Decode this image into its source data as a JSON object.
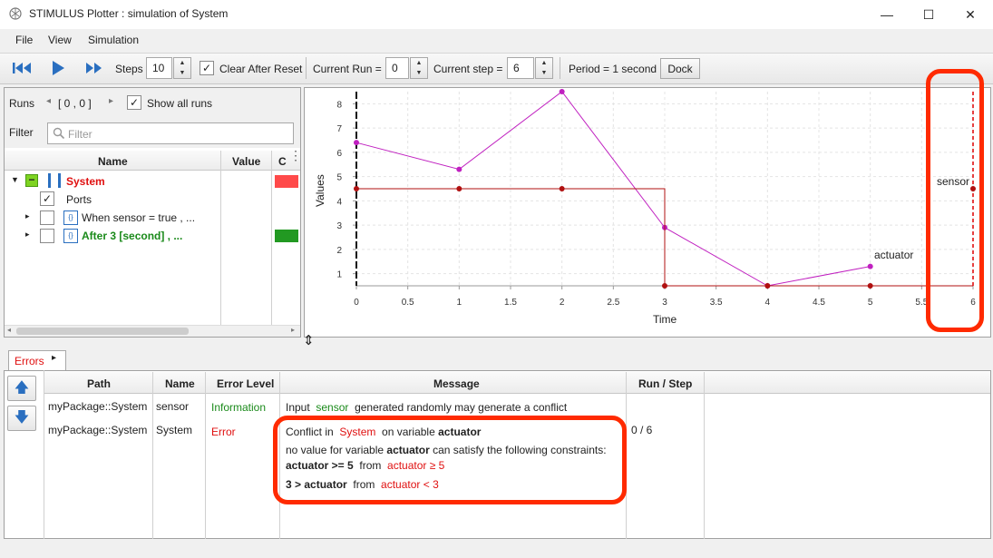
{
  "window": {
    "title": "STIMULUS Plotter : simulation of System",
    "minimize": "—",
    "maximize": "☐",
    "close": "✕"
  },
  "menu": {
    "file": "File",
    "view": "View",
    "simulation": "Simulation"
  },
  "toolbar": {
    "steps_label": "Steps",
    "steps_value": "10",
    "clear_after_reset": "Clear After Reset",
    "current_run_label": "Current Run =",
    "current_run_value": "0",
    "current_step_label": "Current step =",
    "current_step_value": "6",
    "period": "Period = 1 second",
    "dock": "Dock"
  },
  "runs": {
    "label": "Runs",
    "range": "[ 0 , 0 ]",
    "show_all": "Show all runs"
  },
  "filter": {
    "label": "Filter",
    "placeholder": "Filter"
  },
  "tree": {
    "headers": {
      "name": "Name",
      "value": "Value",
      "extra": "C"
    },
    "items": [
      {
        "label": "System"
      },
      {
        "label": "Ports"
      },
      {
        "label": "When  sensor =  true , ..."
      },
      {
        "label": "After  3 [second] , ..."
      }
    ]
  },
  "colors": {
    "red_status": "#ff4040",
    "green_status": "#229922",
    "signal_magenta": "#c020c0",
    "signal_darkred": "#b01010",
    "highlight": "#ff2a00"
  },
  "chart_data": {
    "type": "line",
    "xlabel": "Time",
    "ylabel": "Values",
    "xlim": [
      0,
      6
    ],
    "ylim": [
      0.5,
      8.5
    ],
    "xticks": [
      "0",
      "0.5",
      "1",
      "1.5",
      "2",
      "2.5",
      "3",
      "3.5",
      "4",
      "4.5",
      "5",
      "5.5",
      "6"
    ],
    "yticks": [
      "1",
      "2",
      "3",
      "4",
      "5",
      "6",
      "7",
      "8"
    ],
    "series": [
      {
        "name": "actuator",
        "type": "line",
        "x": [
          0,
          1,
          2,
          3,
          4,
          5
        ],
        "y": [
          6.4,
          5.3,
          8.5,
          2.9,
          0.5,
          1.3
        ]
      },
      {
        "name": "sensor",
        "type": "step",
        "x": [
          0,
          1,
          2,
          3,
          4,
          5,
          6
        ],
        "y": [
          4.5,
          4.5,
          4.5,
          0.5,
          0.5,
          0.5,
          4.5
        ]
      }
    ],
    "grid": true
  },
  "errors_tab": {
    "label": "Errors",
    "arrow": "▸"
  },
  "errors_table": {
    "headers": {
      "path": "Path",
      "name": "Name",
      "level": "Error Level",
      "message": "Message",
      "run_step": "Run / Step"
    },
    "rows": [
      {
        "path": "myPackage::System",
        "name": "sensor",
        "level": "Information",
        "msg_pre": "Input",
        "msg_var": "sensor",
        "msg_post": "generated randomly may generate a conflict",
        "run_step": ""
      },
      {
        "path": "myPackage::System",
        "name": "System",
        "level": "Error",
        "l1_a": "Conflict in",
        "l1_b": "System",
        "l1_c": "on variable",
        "l1_d": "actuator",
        "l2_a": "no value for variable",
        "l2_b": "actuator",
        "l2_c": "can satisfy the following constraints:",
        "l3_a": "actuator >= 5",
        "l3_b": "from",
        "l3_c": "actuator ≥  5",
        "l4_a": "3 > actuator",
        "l4_b": "from",
        "l4_c": "actuator <  3",
        "run_step": "0 / 6"
      }
    ]
  }
}
